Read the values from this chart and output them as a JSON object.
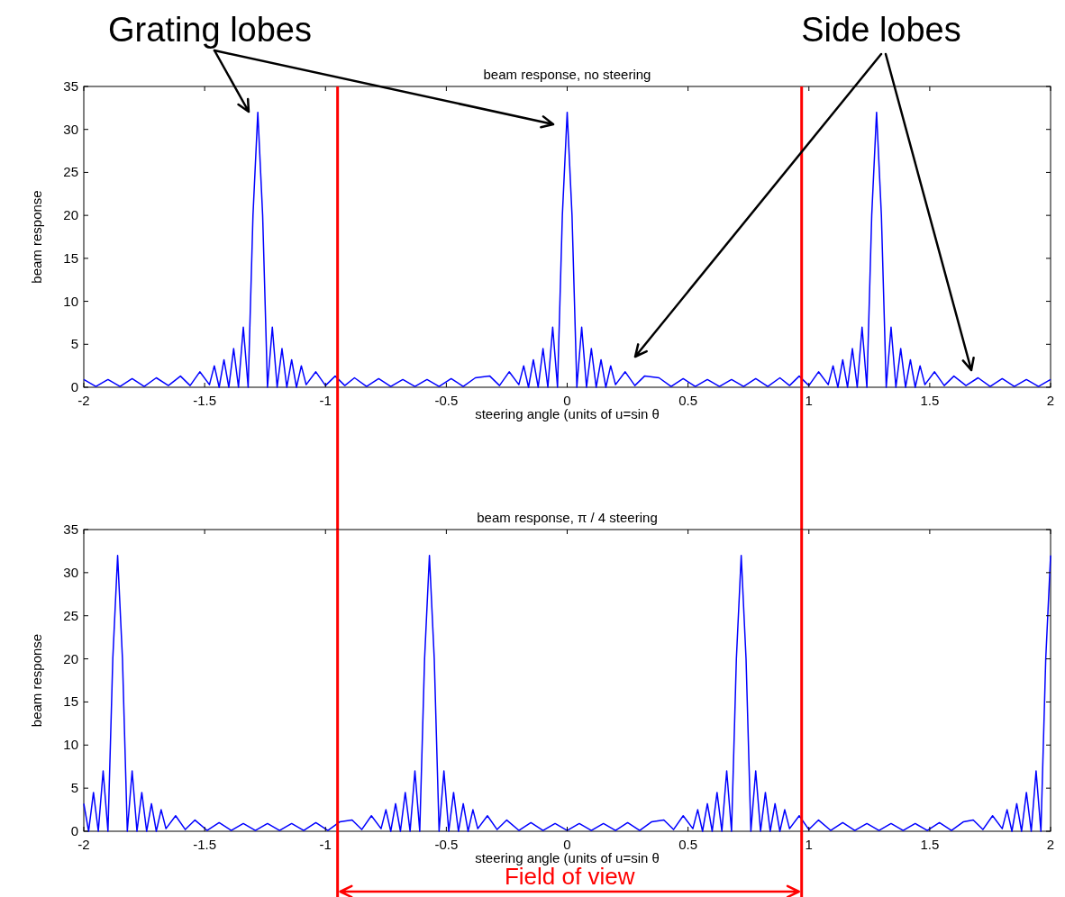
{
  "chart_data": [
    {
      "type": "line",
      "title": "beam response, no steering",
      "xlabel": "steering angle (units of u=sin θ",
      "ylabel": "beam response",
      "xlim": [
        -2,
        2
      ],
      "xticks": [
        -2,
        -1.5,
        -1,
        -0.5,
        0,
        0.5,
        1,
        1.5,
        2
      ],
      "ylim": [
        0,
        35
      ],
      "yticks": [
        0,
        5,
        10,
        15,
        20,
        25,
        30,
        35
      ],
      "series": [
        {
          "color": "#0000ff",
          "x": [
            -2,
            -1.95,
            -1.9,
            -1.85,
            -1.8,
            -1.75,
            -1.7,
            -1.65,
            -1.6,
            -1.56,
            -1.52,
            -1.48,
            -1.46,
            -1.44,
            -1.42,
            -1.4,
            -1.38,
            -1.36,
            -1.34,
            -1.32,
            -1.3,
            -1.28,
            -1.26,
            -1.24,
            -1.22,
            -1.2,
            -1.18,
            -1.16,
            -1.14,
            -1.12,
            -1.1,
            -1.08,
            -1.04,
            -1.0,
            -0.96,
            -0.92,
            -0.88,
            -0.83,
            -0.78,
            -0.73,
            -0.68,
            -0.63,
            -0.58,
            -0.53,
            -0.48,
            -0.43,
            -0.38,
            -0.32,
            -0.28,
            -0.24,
            -0.2,
            -0.18,
            -0.16,
            -0.14,
            -0.12,
            -0.1,
            -0.08,
            -0.06,
            -0.04,
            -0.02,
            0,
            0.02,
            0.04,
            0.06,
            0.08,
            0.1,
            0.12,
            0.14,
            0.16,
            0.18,
            0.2,
            0.24,
            0.28,
            0.32,
            0.38,
            0.43,
            0.48,
            0.53,
            0.58,
            0.63,
            0.68,
            0.73,
            0.78,
            0.83,
            0.88,
            0.92,
            0.96,
            1.0,
            1.04,
            1.08,
            1.1,
            1.12,
            1.14,
            1.16,
            1.18,
            1.2,
            1.22,
            1.24,
            1.26,
            1.28,
            1.3,
            1.32,
            1.34,
            1.36,
            1.38,
            1.4,
            1.42,
            1.44,
            1.46,
            1.48,
            1.52,
            1.56,
            1.6,
            1.65,
            1.7,
            1.75,
            1.8,
            1.85,
            1.9,
            1.95,
            2
          ],
          "values": [
            0.9,
            0.1,
            0.9,
            0.1,
            1.0,
            0.1,
            1.1,
            0.2,
            1.3,
            0.2,
            1.8,
            0.3,
            2.5,
            0,
            3.2,
            0,
            4.5,
            0,
            7,
            0,
            20,
            32,
            20,
            0,
            7,
            0,
            4.5,
            0,
            3.2,
            0,
            2.5,
            0.3,
            1.8,
            0.2,
            1.3,
            0.2,
            1.1,
            0.1,
            1.0,
            0.1,
            0.9,
            0.1,
            0.9,
            0.1,
            1.0,
            0.1,
            1.1,
            1.3,
            0.2,
            1.8,
            0.3,
            2.5,
            0,
            3.2,
            0,
            4.5,
            0,
            7,
            0,
            20,
            32,
            20,
            0,
            7,
            0,
            4.5,
            0,
            3.2,
            0,
            2.5,
            0.3,
            1.8,
            0.2,
            1.3,
            1.1,
            0.1,
            1.0,
            0.1,
            0.9,
            0.1,
            0.9,
            0.1,
            1.0,
            0.1,
            1.1,
            0.2,
            1.3,
            0.2,
            1.8,
            0.3,
            2.5,
            0,
            3.2,
            0,
            4.5,
            0,
            7,
            0,
            20,
            32,
            20,
            0,
            7,
            0,
            4.5,
            0,
            3.2,
            0,
            2.5,
            0.3,
            1.8,
            0.2,
            1.3,
            0.2,
            1.1,
            0.1,
            1.0,
            0.1,
            0.9,
            0.1,
            0.9
          ]
        }
      ],
      "ref_lines": [
        {
          "axis": "x",
          "value": -0.95,
          "color": "#ff0000"
        },
        {
          "axis": "x",
          "value": 0.97,
          "color": "#ff0000"
        }
      ],
      "annotations": [
        "Grating lobes",
        "Side lobes"
      ]
    },
    {
      "type": "line",
      "title": "beam response, π / 4 steering",
      "xlabel": "steering angle (units of u=sin θ",
      "ylabel": "beam response",
      "xlim": [
        -2,
        2
      ],
      "xticks": [
        -2,
        -1.5,
        -1,
        -0.5,
        0,
        0.5,
        1,
        1.5,
        2
      ],
      "ylim": [
        0,
        35
      ],
      "yticks": [
        0,
        5,
        10,
        15,
        20,
        25,
        30,
        35
      ],
      "series": [
        {
          "color": "#0000ff",
          "x": [
            -2,
            -1.98,
            -1.96,
            -1.94,
            -1.92,
            -1.9,
            -1.88,
            -1.86,
            -1.84,
            -1.82,
            -1.8,
            -1.78,
            -1.76,
            -1.74,
            -1.72,
            -1.7,
            -1.68,
            -1.66,
            -1.62,
            -1.58,
            -1.54,
            -1.49,
            -1.44,
            -1.39,
            -1.34,
            -1.29,
            -1.24,
            -1.19,
            -1.14,
            -1.09,
            -1.04,
            -0.99,
            -0.94,
            -0.89,
            -0.85,
            -0.81,
            -0.77,
            -0.75,
            -0.73,
            -0.71,
            -0.69,
            -0.67,
            -0.65,
            -0.63,
            -0.61,
            -0.59,
            -0.57,
            -0.55,
            -0.53,
            -0.51,
            -0.49,
            -0.47,
            -0.45,
            -0.43,
            -0.41,
            -0.39,
            -0.37,
            -0.33,
            -0.29,
            -0.25,
            -0.2,
            -0.15,
            -0.1,
            -0.05,
            0,
            0.05,
            0.1,
            0.15,
            0.2,
            0.25,
            0.3,
            0.35,
            0.4,
            0.44,
            0.48,
            0.52,
            0.54,
            0.56,
            0.58,
            0.6,
            0.62,
            0.64,
            0.66,
            0.68,
            0.7,
            0.72,
            0.74,
            0.76,
            0.78,
            0.8,
            0.82,
            0.84,
            0.86,
            0.88,
            0.9,
            0.92,
            0.96,
            1.0,
            1.04,
            1.09,
            1.14,
            1.19,
            1.24,
            1.29,
            1.34,
            1.39,
            1.44,
            1.49,
            1.54,
            1.59,
            1.64,
            1.68,
            1.72,
            1.76,
            1.8,
            1.82,
            1.84,
            1.86,
            1.88,
            1.9,
            1.92,
            1.94,
            1.96,
            1.98,
            2
          ],
          "values": [
            3.2,
            0,
            4.5,
            0,
            7,
            0,
            20,
            32,
            20,
            0,
            7,
            0,
            4.5,
            0,
            3.2,
            0,
            2.5,
            0.3,
            1.8,
            0.2,
            1.3,
            0.1,
            1.0,
            0.1,
            0.9,
            0.1,
            0.9,
            0.1,
            0.9,
            0.1,
            1.0,
            0.1,
            1.1,
            1.3,
            0.2,
            1.8,
            0.3,
            2.5,
            0,
            3.2,
            0,
            4.5,
            0,
            7,
            0,
            20,
            32,
            20,
            0,
            7,
            0,
            4.5,
            0,
            3.2,
            0,
            2.5,
            0.3,
            1.8,
            0.2,
            1.3,
            0.1,
            1.0,
            0.1,
            0.9,
            0.1,
            0.9,
            0.1,
            0.9,
            0.1,
            1.0,
            0.1,
            1.1,
            1.3,
            0.2,
            1.8,
            0.3,
            2.5,
            0,
            3.2,
            0,
            4.5,
            0,
            7,
            0,
            20,
            32,
            20,
            0,
            7,
            0,
            4.5,
            0,
            3.2,
            0,
            2.5,
            0.3,
            1.8,
            0.2,
            1.3,
            0.1,
            1.0,
            0.1,
            0.9,
            0.1,
            0.9,
            0.1,
            0.9,
            0.1,
            1.0,
            0.1,
            1.1,
            1.3,
            0.2,
            1.8,
            0.3,
            2.5,
            0,
            3.2,
            0,
            4.5,
            0,
            7,
            0,
            20,
            32
          ]
        }
      ],
      "ref_lines": [
        {
          "axis": "x",
          "value": -0.95,
          "color": "#ff0000"
        },
        {
          "axis": "x",
          "value": 0.97,
          "color": "#ff0000"
        }
      ],
      "annotations": [
        "Field of view"
      ]
    }
  ]
}
